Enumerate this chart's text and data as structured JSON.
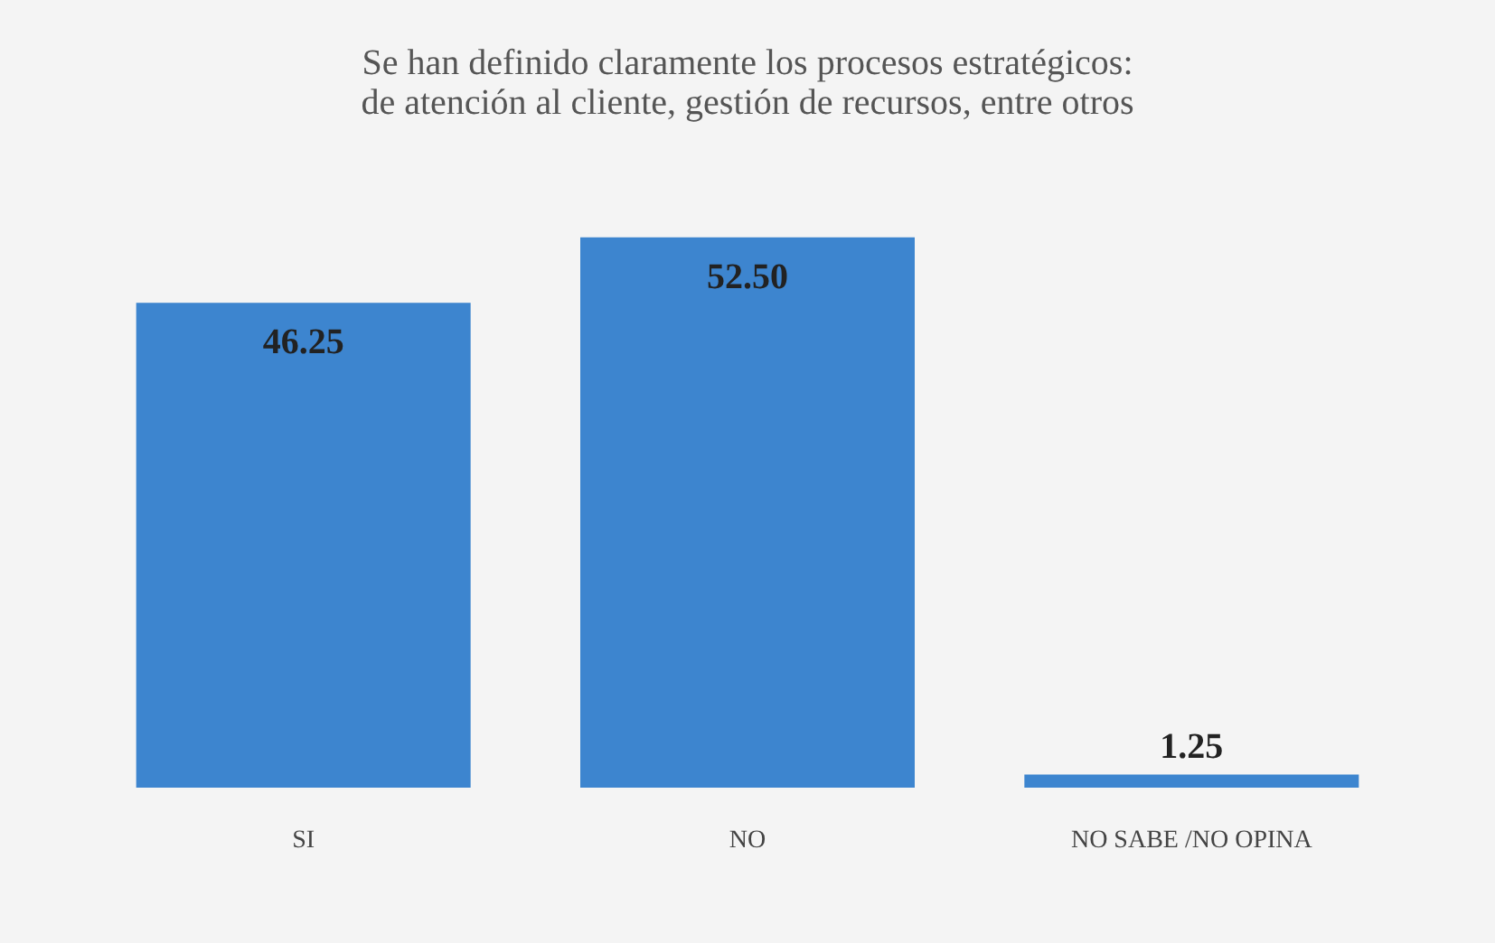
{
  "chart_data": {
    "type": "bar",
    "title": "Se han definido claramente los procesos estratégicos: de atención al cliente, gestión de recursos, entre otros",
    "categories": [
      "SI",
      "NO",
      "NO SABE /NO OPINA"
    ],
    "values": [
      46.25,
      52.5,
      1.25
    ],
    "value_labels": [
      "46.25",
      "52.50",
      "1.25"
    ],
    "color": "#3d85cf",
    "grid": false
  }
}
